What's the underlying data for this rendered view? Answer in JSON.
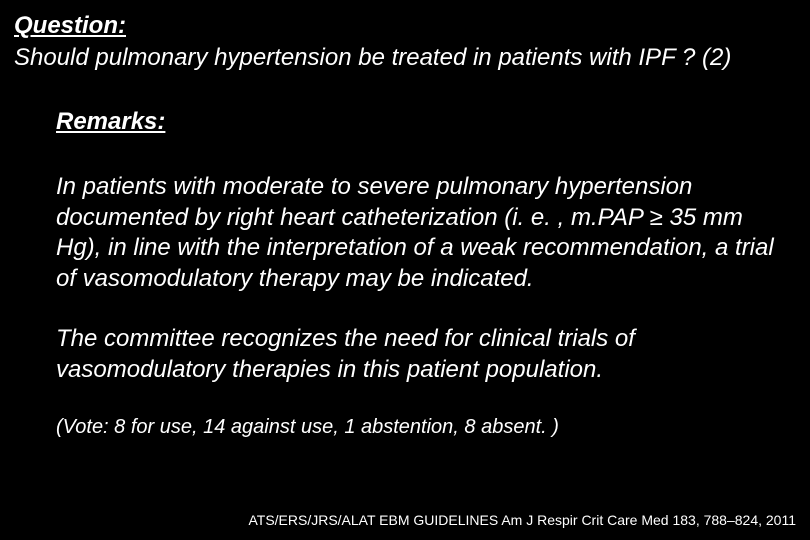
{
  "slide": {
    "background_color": "#000000",
    "text_color": "#ffffff",
    "font_family": "Comic Sans MS",
    "italic": true,
    "question": {
      "label": "Question:",
      "text": "Should pulmonary hypertension be treated in patients with IPF ? (2)",
      "label_fontsize": 24,
      "text_fontsize": 24,
      "label_bold": true,
      "label_underline": true
    },
    "remarks": {
      "label": "Remarks:",
      "label_fontsize": 24,
      "label_bold": true,
      "label_underline": true,
      "paragraphs": [
        "In patients with moderate to severe pulmonary hypertension documented by right heart catheterization (i. e. , m.PAP ≥ 35 mm Hg), in line with the interpretation of a weak recommendation, a trial of vasomodulatory therapy may be indicated.",
        "The committee recognizes the need for clinical trials of vasomodulatory therapies in this patient population."
      ],
      "paragraph_fontsize": 24
    },
    "vote": {
      "text": "(Vote: 8 for use, 14 against use, 1 abstention, 8 absent. )",
      "fontsize": 20,
      "counts": {
        "for_use": 8,
        "against_use": 14,
        "abstention": 1,
        "absent": 8
      }
    },
    "citation": {
      "text": "ATS/ERS/JRS/ALAT EBM GUIDELINES Am J Respir Crit Care Med 183, 788–824, 2011",
      "fontsize": 14,
      "font_family": "Arial"
    }
  }
}
